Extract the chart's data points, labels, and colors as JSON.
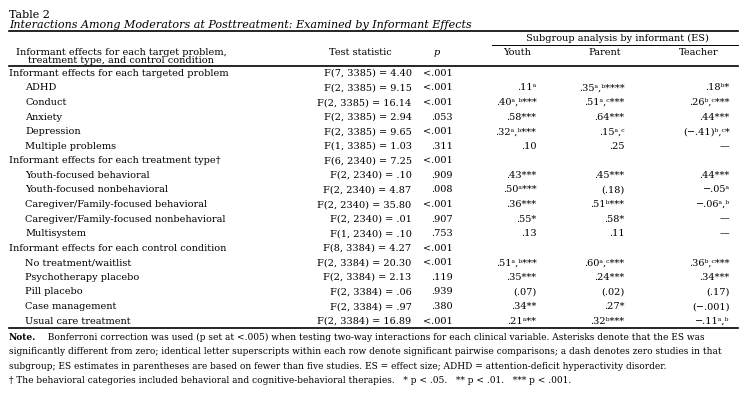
{
  "title_line1": "Table 2",
  "title_line2": "Interactions Among Moderators at Posttreatment: Examined by Informant Effects",
  "col_header_subgroup": "Subgroup analysis by informant (ES)",
  "col_header_youth": "Youth",
  "col_header_parent": "Parent",
  "col_header_teacher": "Teacher",
  "rows": [
    {
      "label": "Informant effects for each targeted problem",
      "indent": 0,
      "test": "F(7, 3385) = 4.40",
      "p": "<.001",
      "youth": "",
      "parent": "",
      "teacher": ""
    },
    {
      "label": "ADHD",
      "indent": 1,
      "test": "F(2, 3385) = 9.15",
      "p": "<.001",
      "youth": ".11ᵃ",
      "parent": ".35ᵃ,ᵇ****",
      "teacher": ".18ᵇ*"
    },
    {
      "label": "Conduct",
      "indent": 1,
      "test": "F(2, 3385) = 16.14",
      "p": "<.001",
      "youth": ".40ᵃ,ᵇ***",
      "parent": ".51ᵃ,ᶜ***",
      "teacher": ".26ᵇ,ᶜ***"
    },
    {
      "label": "Anxiety",
      "indent": 1,
      "test": "F(2, 3385) = 2.94",
      "p": ".053",
      "youth": ".58***",
      "parent": ".64***",
      "teacher": ".44***"
    },
    {
      "label": "Depression",
      "indent": 1,
      "test": "F(2, 3385) = 9.65",
      "p": "<.001",
      "youth": ".32ᵃ,ᵇ***",
      "parent": ".15ᵃ,ᶜ",
      "teacher": "(−.41)ᵇ,ᶜ*"
    },
    {
      "label": "Multiple problems",
      "indent": 1,
      "test": "F(1, 3385) = 1.03",
      "p": ".311",
      "youth": ".10",
      "parent": ".25",
      "teacher": "—"
    },
    {
      "label": "Informant effects for each treatment type†",
      "indent": 0,
      "test": "F(6, 2340) = 7.25",
      "p": "<.001",
      "youth": "",
      "parent": "",
      "teacher": ""
    },
    {
      "label": "Youth-focused behavioral",
      "indent": 1,
      "test": "F(2, 2340) = .10",
      "p": ".909",
      "youth": ".43***",
      "parent": ".45***",
      "teacher": ".44***"
    },
    {
      "label": "Youth-focused nonbehavioral",
      "indent": 1,
      "test": "F(2, 2340) = 4.87",
      "p": ".008",
      "youth": ".50ᵃ***",
      "parent": "(.18)",
      "teacher": "−.05ᵃ"
    },
    {
      "label": "Caregiver/Family-focused behavioral",
      "indent": 1,
      "test": "F(2, 2340) = 35.80",
      "p": "<.001",
      "youth": ".36***",
      "parent": ".51ᵇ***",
      "teacher": "−.06ᵃ,ᵇ"
    },
    {
      "label": "Caregiver/Family-focused nonbehavioral",
      "indent": 1,
      "test": "F(2, 2340) = .01",
      "p": ".907",
      "youth": ".55*",
      "parent": ".58*",
      "teacher": "—"
    },
    {
      "label": "Multisystem",
      "indent": 1,
      "test": "F(1, 2340) = .10",
      "p": ".753",
      "youth": ".13",
      "parent": ".11",
      "teacher": "—"
    },
    {
      "label": "Informant effects for each control condition",
      "indent": 0,
      "test": "F(8, 3384) = 4.27",
      "p": "<.001",
      "youth": "",
      "parent": "",
      "teacher": ""
    },
    {
      "label": "No treatment/waitlist",
      "indent": 1,
      "test": "F(2, 3384) = 20.30",
      "p": "<.001",
      "youth": ".51ᵃ,ᵇ***",
      "parent": ".60ᵃ,ᶜ***",
      "teacher": ".36ᵇ,ᶜ***"
    },
    {
      "label": "Psychotherapy placebo",
      "indent": 1,
      "test": "F(2, 3384) = 2.13",
      "p": ".119",
      "youth": ".35***",
      "parent": ".24***",
      "teacher": ".34***"
    },
    {
      "label": "Pill placebo",
      "indent": 1,
      "test": "F(2, 3384) = .06",
      "p": ".939",
      "youth": "(.07)",
      "parent": "(.02)",
      "teacher": "(.17)"
    },
    {
      "label": "Case management",
      "indent": 1,
      "test": "F(2, 3384) = .97",
      "p": ".380",
      "youth": ".34**",
      "parent": ".27*",
      "teacher": "(−.001)"
    },
    {
      "label": "Usual care treatment",
      "indent": 1,
      "test": "F(2, 3384) = 16.89",
      "p": "<.001",
      "youth": ".21ᵃ**",
      "parent": ".32ᵇ***",
      "teacher": "−.11ᵃ,ᵇ"
    }
  ],
  "note_bold": "Note.",
  "note1": "  Bonferroni correction was used (p set at <.005) when testing two-way interactions for each clinical variable. Asterisks denote that the ES was",
  "note2": "significantly different from zero; identical letter superscripts within each row denote significant pairwise comparisons; a dash denotes zero studies in that",
  "note3": "subgroup; ES estimates in parentheses are based on fewer than five studies. ES = effect size; ADHD = attention-deficit hyperactivity disorder.",
  "note4": "† The behavioral categories included behavioral and cognitive-behavioral therapies.   * p < .05.   ** p < .01.   *** p < .001.",
  "fontsize": 7.0,
  "title_fontsize": 8.0,
  "note_fontsize": 6.5
}
